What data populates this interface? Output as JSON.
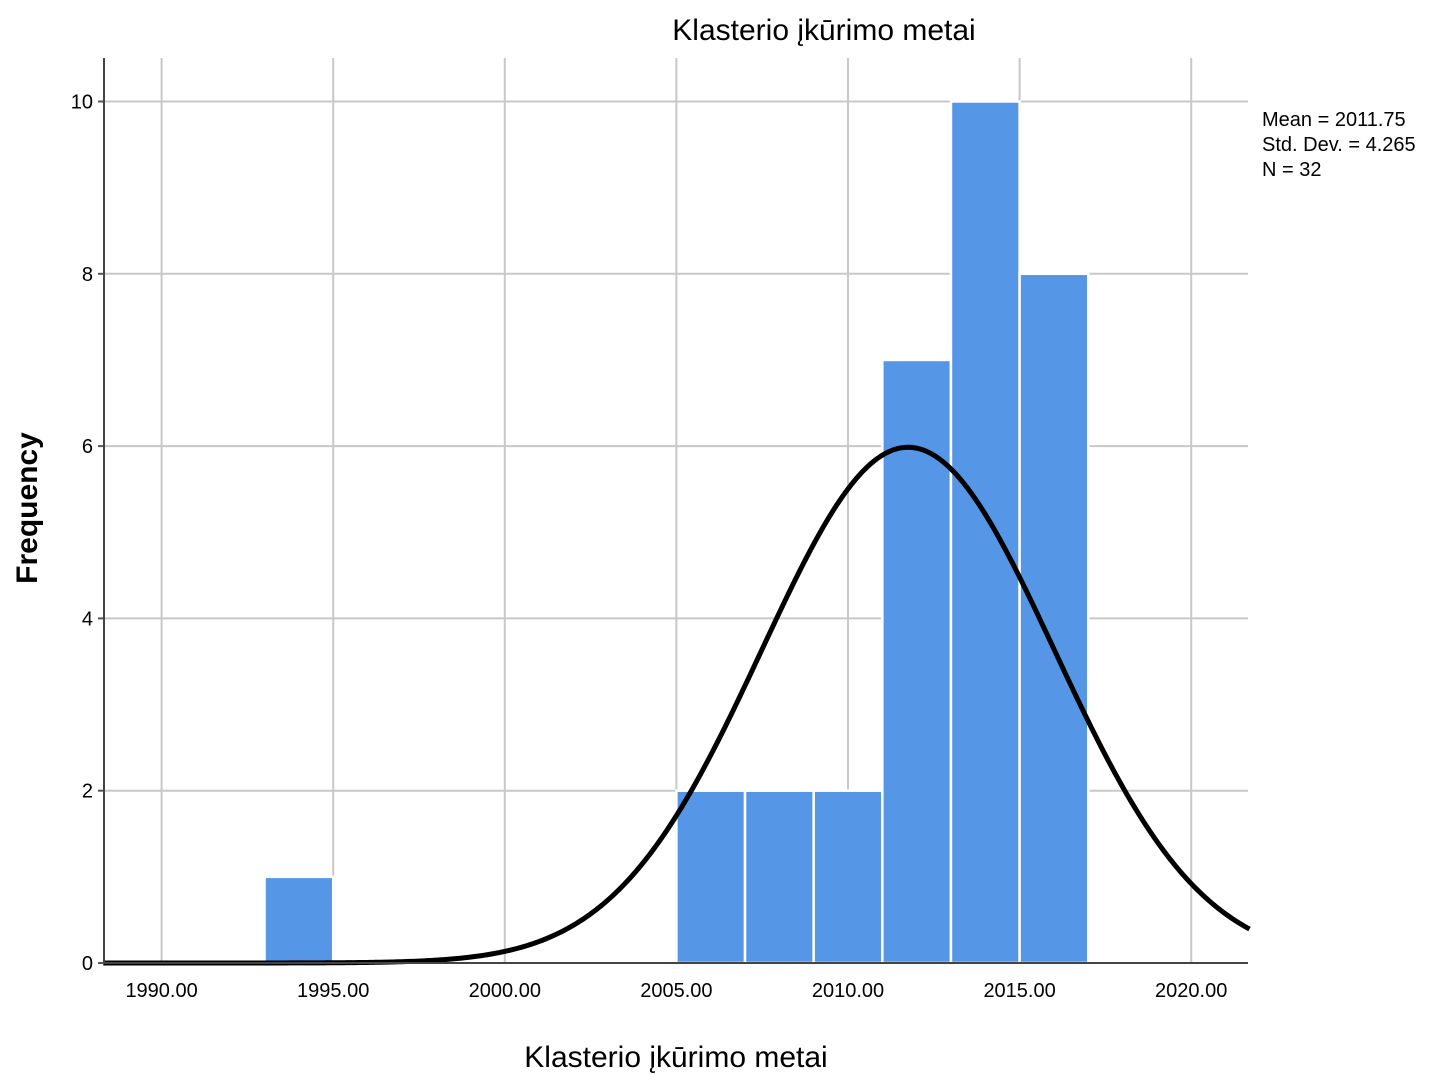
{
  "chart_data": {
    "type": "bar",
    "title": "Klasterio įkūrimo metai",
    "xlabel": "Klasterio įkūrimo metai",
    "ylabel": "Frequency",
    "xlim": [
      1988.3,
      2021.7
    ],
    "ylim": [
      0,
      10.5
    ],
    "x_ticks": [
      "1990.00",
      "1995.00",
      "2000.00",
      "2005.00",
      "2010.00",
      "2015.00",
      "2020.00"
    ],
    "x_tick_values": [
      1990,
      1995,
      2000,
      2005,
      2010,
      2015,
      2020
    ],
    "y_ticks": [
      0,
      2,
      4,
      6,
      8,
      10
    ],
    "bins": [
      {
        "start": 1993.0,
        "end": 1995.0,
        "count": 1
      },
      {
        "start": 2005.0,
        "end": 2007.0,
        "count": 2
      },
      {
        "start": 2007.0,
        "end": 2009.0,
        "count": 2
      },
      {
        "start": 2009.0,
        "end": 2011.0,
        "count": 2
      },
      {
        "start": 2011.0,
        "end": 2013.0,
        "count": 7
      },
      {
        "start": 2013.0,
        "end": 2015.0,
        "count": 10
      },
      {
        "start": 2015.0,
        "end": 2017.0,
        "count": 8
      }
    ],
    "normal_curve": {
      "mean": 2011.75,
      "std_dev": 4.265,
      "n": 32,
      "bin_width": 2
    },
    "stats": {
      "mean_label": "Mean = 2011.75",
      "std_label": "Std. Dev. = 4.265",
      "n_label": "N = 32"
    },
    "bar_color": "#5596e6",
    "grid": true,
    "grid_color": "#c8c8c8",
    "curve_color": "#000000"
  }
}
